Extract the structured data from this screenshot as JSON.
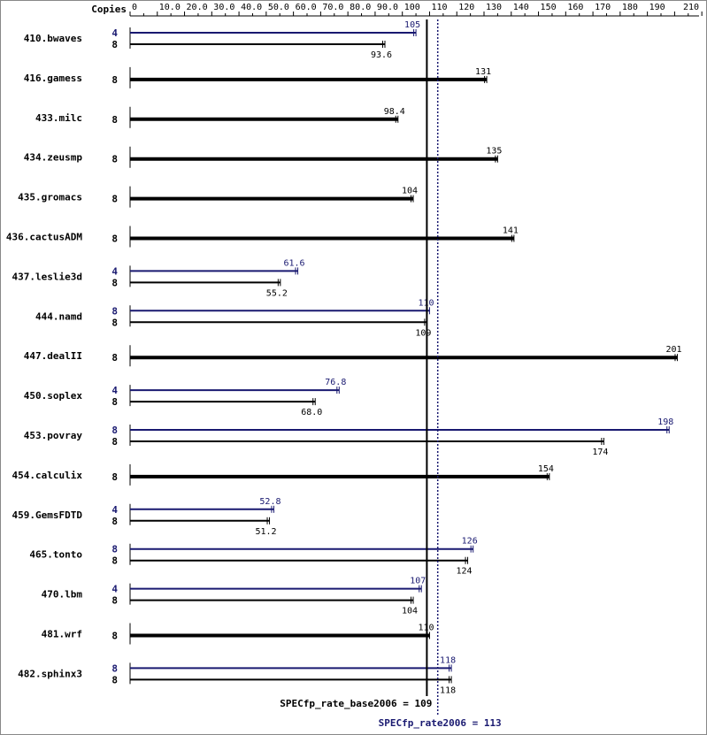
{
  "chart_data": {
    "type": "bar",
    "orientation": "horizontal",
    "copies_header": "Copies",
    "axis_ticks": [
      "0",
      "10.0",
      "20.0",
      "30.0",
      "40.0",
      "50.0",
      "60.0",
      "70.0",
      "80.0",
      "90.0",
      "100",
      "110",
      "120",
      "130",
      "140",
      "150",
      "160",
      "170",
      "180",
      "190",
      "210"
    ],
    "axis_tick_values": [
      0,
      10,
      20,
      30,
      40,
      50,
      60,
      70,
      80,
      90,
      100,
      110,
      120,
      130,
      140,
      150,
      160,
      170,
      180,
      190,
      210
    ],
    "xlim": [
      0,
      210
    ],
    "colors": {
      "base": "#000000",
      "peak": "#191970"
    },
    "benchmarks": [
      {
        "name": "410.bwaves",
        "peak": {
          "copies": "4",
          "value": 105,
          "label": "105"
        },
        "base": {
          "copies": "8",
          "value": 93.6,
          "label": "93.6"
        }
      },
      {
        "name": "416.gamess",
        "base": {
          "copies": "8",
          "value": 131,
          "label": "131"
        }
      },
      {
        "name": "433.milc",
        "base": {
          "copies": "8",
          "value": 98.4,
          "label": "98.4"
        }
      },
      {
        "name": "434.zeusmp",
        "base": {
          "copies": "8",
          "value": 135,
          "label": "135"
        }
      },
      {
        "name": "435.gromacs",
        "base": {
          "copies": "8",
          "value": 104,
          "label": "104"
        }
      },
      {
        "name": "436.cactusADM",
        "base": {
          "copies": "8",
          "value": 141,
          "label": "141"
        }
      },
      {
        "name": "437.leslie3d",
        "peak": {
          "copies": "4",
          "value": 61.6,
          "label": "61.6"
        },
        "base": {
          "copies": "8",
          "value": 55.2,
          "label": "55.2"
        }
      },
      {
        "name": "444.namd",
        "peak": {
          "copies": "8",
          "value": 110,
          "label": "110"
        },
        "base": {
          "copies": "8",
          "value": 109,
          "label": "109"
        }
      },
      {
        "name": "447.dealII",
        "base": {
          "copies": "8",
          "value": 201,
          "label": "201"
        }
      },
      {
        "name": "450.soplex",
        "peak": {
          "copies": "4",
          "value": 76.8,
          "label": "76.8"
        },
        "base": {
          "copies": "8",
          "value": 68.0,
          "label": "68.0"
        }
      },
      {
        "name": "453.povray",
        "peak": {
          "copies": "8",
          "value": 198,
          "label": "198"
        },
        "base": {
          "copies": "8",
          "value": 174,
          "label": "174"
        }
      },
      {
        "name": "454.calculix",
        "base": {
          "copies": "8",
          "value": 154,
          "label": "154"
        }
      },
      {
        "name": "459.GemsFDTD",
        "peak": {
          "copies": "4",
          "value": 52.8,
          "label": "52.8"
        },
        "base": {
          "copies": "8",
          "value": 51.2,
          "label": "51.2"
        }
      },
      {
        "name": "465.tonto",
        "peak": {
          "copies": "8",
          "value": 126,
          "label": "126"
        },
        "base": {
          "copies": "8",
          "value": 124,
          "label": "124"
        }
      },
      {
        "name": "470.lbm",
        "peak": {
          "copies": "4",
          "value": 107,
          "label": "107"
        },
        "base": {
          "copies": "8",
          "value": 104,
          "label": "104"
        }
      },
      {
        "name": "481.wrf",
        "base": {
          "copies": "8",
          "value": 110,
          "label": "110"
        }
      },
      {
        "name": "482.sphinx3",
        "peak": {
          "copies": "8",
          "value": 118,
          "label": "118"
        },
        "base": {
          "copies": "8",
          "value": 118,
          "label": "118"
        }
      }
    ],
    "reference_lines": {
      "base": {
        "label": "SPECfp_rate_base2006 = 109",
        "value": 109
      },
      "peak": {
        "label": "SPECfp_rate2006 = 113",
        "value": 113
      }
    }
  }
}
